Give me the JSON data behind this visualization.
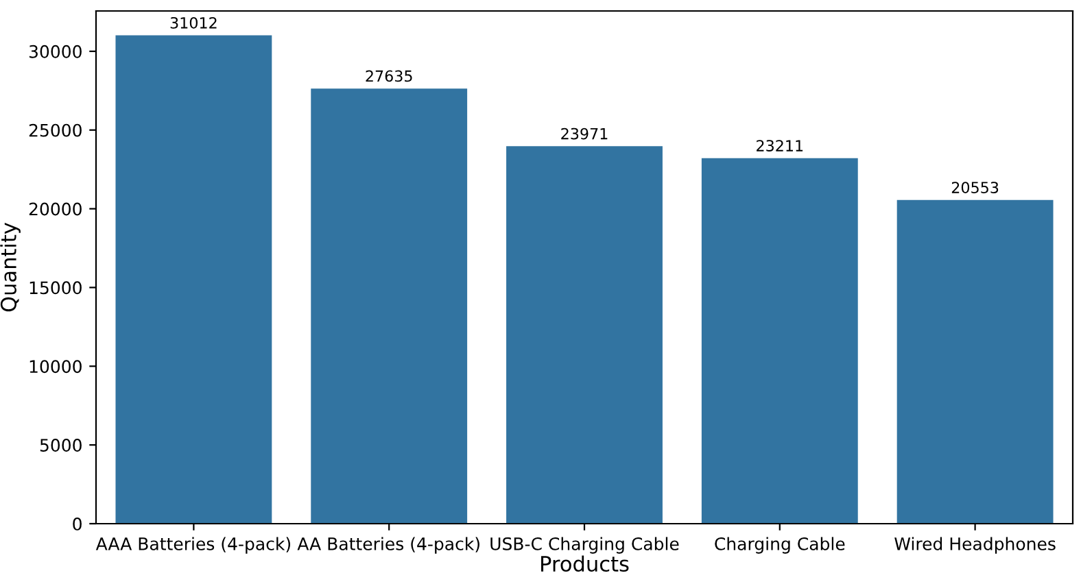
{
  "chart_data": {
    "type": "bar",
    "xlabel": "Products",
    "ylabel": "Quantity",
    "categories": [
      "AAA Batteries (4-pack)",
      "AA Batteries (4-pack)",
      "USB-C Charging Cable",
      "Charging Cable",
      "Wired Headphones"
    ],
    "values": [
      31012,
      27635,
      23971,
      23211,
      20553
    ],
    "color": "#3274a1",
    "ylim": [
      0,
      32562
    ],
    "yticks": [
      0,
      5000,
      10000,
      15000,
      20000,
      25000,
      30000
    ],
    "data_labels": true
  }
}
